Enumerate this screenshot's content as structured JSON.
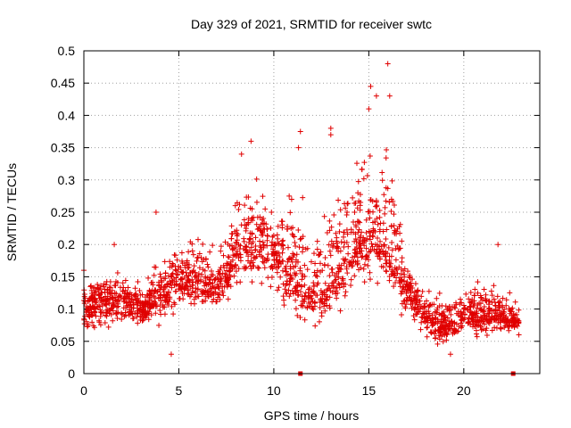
{
  "chart_data": {
    "type": "scatter",
    "title": "Day 329 of 2021, SRMTID for receiver swtc",
    "xlabel": "GPS time / hours",
    "ylabel": "SRMTID / TECUs",
    "xlim": [
      0,
      24
    ],
    "ylim": [
      0,
      0.5
    ],
    "xticks": [
      0,
      5,
      10,
      15,
      20
    ],
    "xtick_labels": [
      "0",
      "5",
      "10",
      "15",
      "20"
    ],
    "yticks": [
      0,
      0.05,
      0.1,
      0.15,
      0.2,
      0.25,
      0.3,
      0.35,
      0.4,
      0.45,
      0.5
    ],
    "ytick_labels": [
      "0",
      "0.05",
      "0.1",
      "0.15",
      "0.2",
      "0.25",
      "0.3",
      "0.35",
      "0.4",
      "0.45",
      "0.5"
    ],
    "grid": true,
    "marker": "plus",
    "color": "#e00000",
    "profile_time_hours": [
      0,
      1,
      2,
      3,
      4,
      5,
      6,
      7,
      8,
      9,
      10,
      11,
      12,
      13,
      14,
      15,
      16,
      17,
      18,
      19,
      20,
      21,
      22,
      22.9
    ],
    "profile_median": [
      0.1,
      0.11,
      0.11,
      0.1,
      0.12,
      0.15,
      0.14,
      0.13,
      0.19,
      0.21,
      0.19,
      0.16,
      0.11,
      0.14,
      0.19,
      0.22,
      0.19,
      0.13,
      0.09,
      0.07,
      0.09,
      0.09,
      0.09,
      0.08
    ],
    "profile_upper": [
      0.16,
      0.17,
      0.18,
      0.15,
      0.21,
      0.24,
      0.24,
      0.22,
      0.33,
      0.35,
      0.29,
      0.37,
      0.22,
      0.37,
      0.36,
      0.45,
      0.48,
      0.2,
      0.15,
      0.12,
      0.16,
      0.2,
      0.15,
      0.12
    ],
    "profile_lower": [
      0.05,
      0.05,
      0.06,
      0.06,
      0.05,
      0.08,
      0.08,
      0.08,
      0.11,
      0.1,
      0.09,
      0.06,
      0.05,
      0.07,
      0.1,
      0.12,
      0.1,
      0.07,
      0.04,
      0.03,
      0.05,
      0.05,
      0.05,
      0.06
    ],
    "points_per_hour": 90,
    "zero_points": [
      {
        "x": 11.4,
        "y": 0
      },
      {
        "x": 22.6,
        "y": 0
      }
    ],
    "highlight_points": [
      {
        "x": 0.0,
        "y": 0.16
      },
      {
        "x": 1.6,
        "y": 0.2
      },
      {
        "x": 3.8,
        "y": 0.25
      },
      {
        "x": 4.6,
        "y": 0.03
      },
      {
        "x": 8.3,
        "y": 0.34
      },
      {
        "x": 8.8,
        "y": 0.36
      },
      {
        "x": 11.3,
        "y": 0.35
      },
      {
        "x": 11.4,
        "y": 0.375
      },
      {
        "x": 13.0,
        "y": 0.37
      },
      {
        "x": 13.0,
        "y": 0.38
      },
      {
        "x": 15.1,
        "y": 0.445
      },
      {
        "x": 15.4,
        "y": 0.43
      },
      {
        "x": 16.0,
        "y": 0.48
      },
      {
        "x": 16.1,
        "y": 0.43
      },
      {
        "x": 15.0,
        "y": 0.41
      },
      {
        "x": 21.8,
        "y": 0.2
      },
      {
        "x": 19.3,
        "y": 0.03
      },
      {
        "x": 22.9,
        "y": 0.06
      }
    ]
  }
}
